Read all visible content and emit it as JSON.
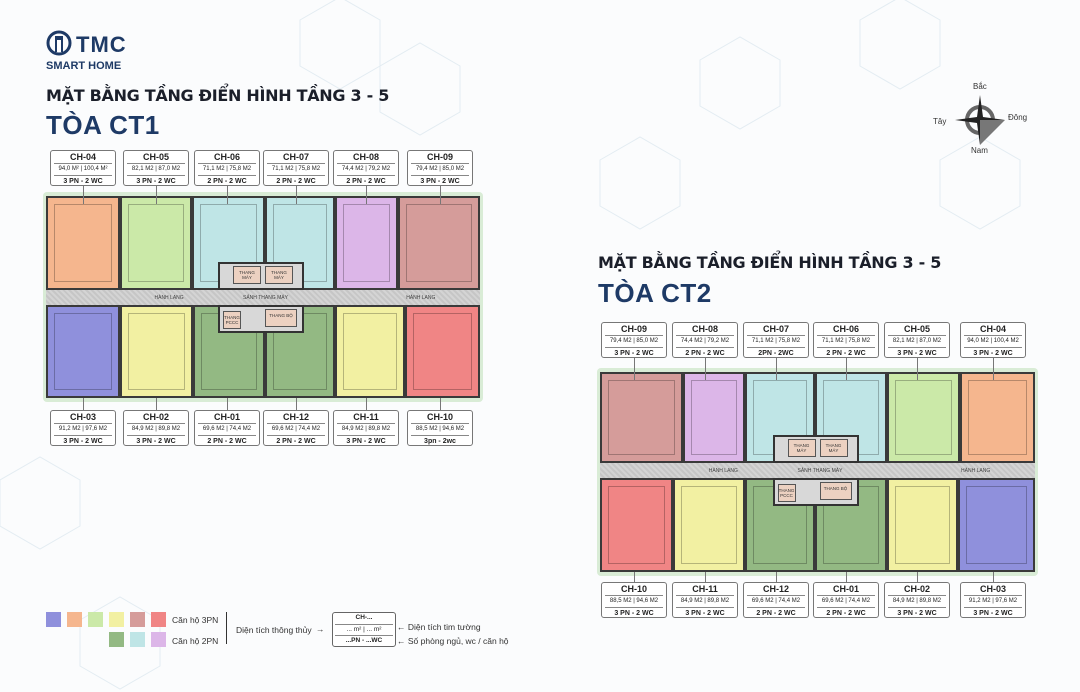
{
  "brand": {
    "name": "TMC",
    "tagline": "SMART HOME"
  },
  "compass": {
    "north": "Bắc",
    "south": "Nam",
    "east": "Đông",
    "west": "Tây"
  },
  "colors": {
    "orange": "#f5b68e",
    "lightgreen": "#cbe9a8",
    "cyan": "#bfe5e6",
    "lilac": "#dcb6e8",
    "rose": "#d59c9a",
    "blue": "#8f90dc",
    "yellow": "#f2f0a2",
    "green": "#93b983",
    "red": "#f08585",
    "title": "#1e3a66"
  },
  "buildings": [
    {
      "title": "MẶT BẰNG TẦNG ĐIỂN HÌNH TẦNG 3 - 5",
      "subtitle": "TÒA CT1",
      "corridor_labels": [
        "HÀNH LANG",
        "SẢNH THANG MÁY",
        "HÀNH LANG"
      ],
      "core_labels": [
        "THANG MÁY",
        "THANG MÁY",
        "THANG PCCC",
        "THANG BỘ"
      ],
      "top_units": [
        {
          "code": "CH-04",
          "area": "94,0 M² | 100,4 M²",
          "rooms": "3 PN - 2 WC",
          "color": "orange"
        },
        {
          "code": "CH-05",
          "area": "82,1 M2 | 87,0 M2",
          "rooms": "3 PN - 2 WC",
          "color": "lightgreen"
        },
        {
          "code": "CH-06",
          "area": "71,1 M2 | 75,8 M2",
          "rooms": "2 PN - 2 WC",
          "color": "cyan"
        },
        {
          "code": "CH-07",
          "area": "71,1 M2 | 75,8 M2",
          "rooms": "2 PN - 2 WC",
          "color": "cyan"
        },
        {
          "code": "CH-08",
          "area": "74,4 M2 | 79,2 M2",
          "rooms": "2 PN - 2 WC",
          "color": "lilac"
        },
        {
          "code": "CH-09",
          "area": "79,4 M2 | 85,0 M2",
          "rooms": "3 PN - 2 WC",
          "color": "rose"
        }
      ],
      "bottom_units": [
        {
          "code": "CH-03",
          "area": "91,2 M2 | 97,6 M2",
          "rooms": "3 PN - 2 WC",
          "color": "blue"
        },
        {
          "code": "CH-02",
          "area": "84,9 M2 | 89,8 M2",
          "rooms": "3 PN - 2 WC",
          "color": "yellow"
        },
        {
          "code": "CH-01",
          "area": "69,6 M2 | 74,4 M2",
          "rooms": "2 PN - 2 WC",
          "color": "green"
        },
        {
          "code": "CH-12",
          "area": "69,6 M2 | 74,4 M2",
          "rooms": "2 PN - 2 WC",
          "color": "green"
        },
        {
          "code": "CH-11",
          "area": "84,9 M2 | 89,8 M2",
          "rooms": "3 PN - 2 WC",
          "color": "yellow"
        },
        {
          "code": "CH-10",
          "area": "88,5 M2 | 94,6 M2",
          "rooms": "3pn - 2wc",
          "color": "red"
        }
      ]
    },
    {
      "title": "MẶT BẰNG TẦNG ĐIỂN HÌNH TẦNG 3 - 5",
      "subtitle": "TÒA CT2",
      "corridor_labels": [
        "HÀNH LANG",
        "SẢNH THANG MÁY",
        "HÀNH LANG"
      ],
      "core_labels": [
        "THANG MÁY",
        "THANG MÁY",
        "THANG PCCC",
        "THANG BỘ"
      ],
      "top_units": [
        {
          "code": "CH-09",
          "area": "79,4 M2 | 85,0 M2",
          "rooms": "3 PN - 2 WC",
          "color": "rose"
        },
        {
          "code": "CH-08",
          "area": "74,4 M2 | 79,2 M2",
          "rooms": "2 PN - 2 WC",
          "color": "lilac"
        },
        {
          "code": "CH-07",
          "area": "71,1 M2 | 75,8 M2",
          "rooms": "2PN - 2WC",
          "color": "cyan"
        },
        {
          "code": "CH-06",
          "area": "71,1 M2 | 75,8 M2",
          "rooms": "2 PN - 2 WC",
          "color": "cyan"
        },
        {
          "code": "CH-05",
          "area": "82,1 M2 | 87,0 M2",
          "rooms": "3 PN - 2 WC",
          "color": "lightgreen"
        },
        {
          "code": "CH-04",
          "area": "94,0 M2 | 100,4 M2",
          "rooms": "3 PN - 2 WC",
          "color": "orange"
        }
      ],
      "bottom_units": [
        {
          "code": "CH-10",
          "area": "88,5 M2 | 94,6 M2",
          "rooms": "3 PN - 2 WC",
          "color": "red"
        },
        {
          "code": "CH-11",
          "area": "84,9 M2 | 89,8 M2",
          "rooms": "3 PN - 2 WC",
          "color": "yellow"
        },
        {
          "code": "CH-12",
          "area": "69,6 M2 | 74,4 M2",
          "rooms": "2 PN - 2 WC",
          "color": "green"
        },
        {
          "code": "CH-01",
          "area": "69,6 M2 | 74,4 M2",
          "rooms": "2 PN - 2 WC",
          "color": "green"
        },
        {
          "code": "CH-02",
          "area": "84,9 M2 | 89,8 M2",
          "rooms": "3 PN - 2 WC",
          "color": "yellow"
        },
        {
          "code": "CH-03",
          "area": "91,2 M2 | 97,6 M2",
          "rooms": "3 PN - 2 WC",
          "color": "blue"
        }
      ]
    }
  ],
  "legend": {
    "three_bed": {
      "label": "Căn hộ 3PN",
      "colors": [
        "blue",
        "orange",
        "lightgreen",
        "yellow",
        "rose",
        "red"
      ]
    },
    "two_bed": {
      "label": "Căn hộ 2PN",
      "colors": [
        "green",
        "cyan",
        "lilac"
      ]
    },
    "net_area": "Diện tích thông thủy",
    "gross_area": "Diện tích tim tường",
    "rooms_note": "Số phòng ngủ, wc / căn hộ",
    "sample": {
      "code": "CH-...",
      "area": "... m² | ... m²",
      "rooms": "...PN - ...WC"
    }
  }
}
